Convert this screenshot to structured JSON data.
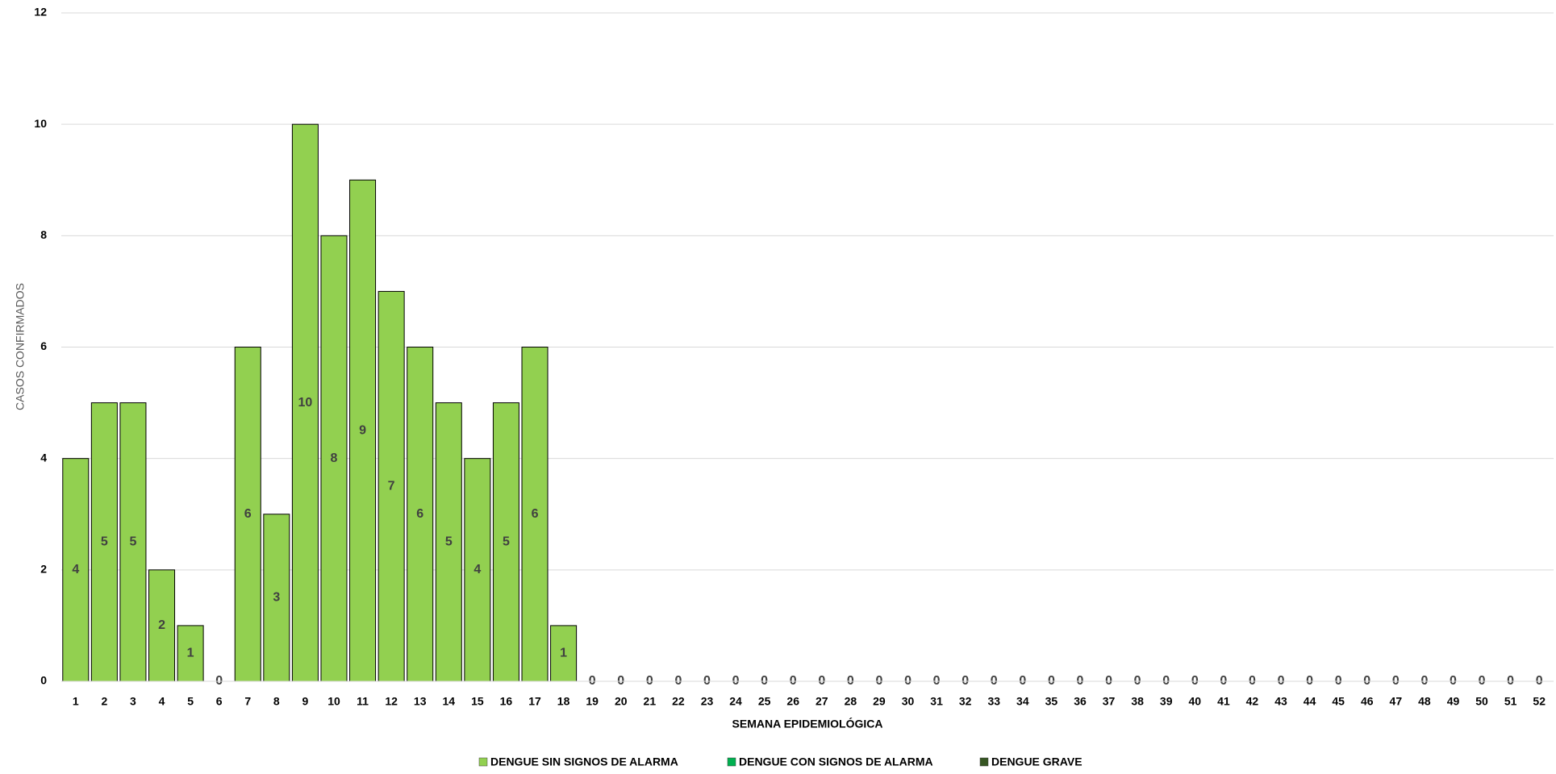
{
  "chart_data": {
    "type": "bar",
    "stacked": true,
    "x_label": "SEMANA EPIDEMIOLÓGICA",
    "y_label": "CASOS CONFIRMADOS",
    "categories": [
      "1",
      "2",
      "3",
      "4",
      "5",
      "6",
      "7",
      "8",
      "9",
      "10",
      "11",
      "12",
      "13",
      "14",
      "15",
      "16",
      "17",
      "18",
      "19",
      "20",
      "21",
      "22",
      "23",
      "24",
      "25",
      "26",
      "27",
      "28",
      "29",
      "30",
      "31",
      "32",
      "33",
      "34",
      "35",
      "36",
      "37",
      "38",
      "39",
      "40",
      "41",
      "42",
      "43",
      "44",
      "45",
      "46",
      "47",
      "48",
      "49",
      "50",
      "51",
      "52"
    ],
    "series": [
      {
        "name": "DENGUE SIN SIGNOS DE ALARMA",
        "color": "#92d050",
        "values": [
          4,
          5,
          5,
          2,
          1,
          0,
          6,
          3,
          10,
          8,
          9,
          7,
          6,
          5,
          4,
          5,
          6,
          1,
          0,
          0,
          0,
          0,
          0,
          0,
          0,
          0,
          0,
          0,
          0,
          0,
          0,
          0,
          0,
          0,
          0,
          0,
          0,
          0,
          0,
          0,
          0,
          0,
          0,
          0,
          0,
          0,
          0,
          0,
          0,
          0,
          0,
          0
        ]
      },
      {
        "name": "DENGUE CON SIGNOS DE ALARMA",
        "color": "#00b050",
        "values": [
          0,
          0,
          0,
          0,
          0,
          0,
          0,
          0,
          0,
          0,
          0,
          0,
          0,
          0,
          0,
          0,
          0,
          0,
          0,
          0,
          0,
          0,
          0,
          0,
          0,
          0,
          0,
          0,
          0,
          0,
          0,
          0,
          0,
          0,
          0,
          0,
          0,
          0,
          0,
          0,
          0,
          0,
          0,
          0,
          0,
          0,
          0,
          0,
          0,
          0,
          0,
          0
        ]
      },
      {
        "name": "DENGUE GRAVE",
        "color": "#375623",
        "values": [
          0,
          0,
          0,
          0,
          0,
          0,
          0,
          0,
          0,
          0,
          0,
          0,
          0,
          0,
          0,
          0,
          0,
          0,
          0,
          0,
          0,
          0,
          0,
          0,
          0,
          0,
          0,
          0,
          0,
          0,
          0,
          0,
          0,
          0,
          0,
          0,
          0,
          0,
          0,
          0,
          0,
          0,
          0,
          0,
          0,
          0,
          0,
          0,
          0,
          0,
          0,
          0
        ]
      }
    ],
    "ylim": [
      0,
      12
    ],
    "yticks": [
      0,
      2,
      4,
      6,
      8,
      10,
      12
    ],
    "grid": true,
    "legend": "bottom"
  }
}
